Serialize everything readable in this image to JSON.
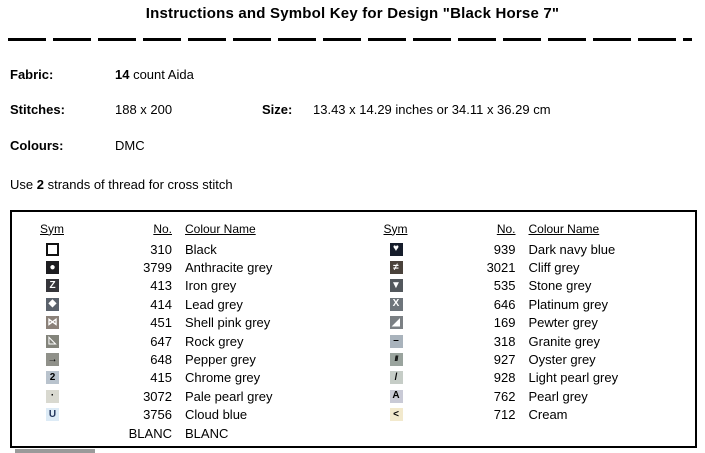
{
  "title": "Instructions and Symbol Key for Design \"Black Horse 7\"",
  "info": {
    "fabric_label": "Fabric:",
    "fabric_value_bold": "14",
    "fabric_value_rest": " count Aida",
    "stitches_label": "Stitches:",
    "stitches_value": "188 x 200",
    "size_label": "Size:",
    "size_value": "13.43 x 14.29 inches or 34.11 x 36.29 cm",
    "colours_label": "Colours:",
    "colours_value": "DMC",
    "strands_prefix": "Use ",
    "strands_bold": "2",
    "strands_suffix": " strands of thread for cross stitch"
  },
  "key_table": {
    "headers": {
      "sym": "Sym",
      "no": "No.",
      "name": "Colour Name"
    },
    "left_rows": [
      {
        "symbol": "open-square-icon",
        "glyph": "",
        "bg": "#ffffff",
        "fg": "#000000",
        "border": "#111111",
        "no": "310",
        "name": "Black"
      },
      {
        "symbol": "filled-circle-icon",
        "glyph": "●",
        "bg": "#1d1d20",
        "fg": "#ffffff",
        "no": "3799",
        "name": "Anthracite grey"
      },
      {
        "symbol": "letter-z-icon",
        "glyph": "Z",
        "bg": "#35353a",
        "fg": "#ffffff",
        "no": "413",
        "name": "Iron grey"
      },
      {
        "symbol": "diamond-icon",
        "glyph": "◆",
        "bg": "#5a616b",
        "fg": "#ffffff",
        "no": "414",
        "name": "Lead grey"
      },
      {
        "symbol": "bowtie-icon",
        "glyph": "⋈",
        "bg": "#8b8179",
        "fg": "#ffffff",
        "no": "451",
        "name": "Shell pink grey"
      },
      {
        "symbol": "lower-left-triangle-icon",
        "glyph": "◺",
        "bg": "#83847b",
        "fg": "#ffffff",
        "no": "647",
        "name": "Rock grey"
      },
      {
        "symbol": "right-arrow-icon",
        "glyph": "→",
        "bg": "#90918a",
        "fg": "#000000",
        "no": "648",
        "name": "Pepper grey"
      },
      {
        "symbol": "digit-2-icon",
        "glyph": "2",
        "bg": "#b9c3cd",
        "fg": "#000000",
        "no": "415",
        "name": "Chrome grey"
      },
      {
        "symbol": "dot-icon",
        "glyph": "·",
        "bg": "#d9d9d0",
        "fg": "#000000",
        "no": "3072",
        "name": "Pale pearl grey"
      },
      {
        "symbol": "letter-u-icon",
        "glyph": "U",
        "bg": "#ddebf6",
        "fg": "#23355c",
        "no": "3756",
        "name": "Cloud blue"
      },
      {
        "symbol": "blank-icon",
        "glyph": "",
        "bg": "#ffffff",
        "fg": "#000000",
        "no": "BLANC",
        "name": "BLANC"
      }
    ],
    "right_rows": [
      {
        "symbol": "heart-icon",
        "glyph": "♥",
        "bg": "#161d2b",
        "fg": "#ffffff",
        "no": "939",
        "name": "Dark navy blue"
      },
      {
        "symbol": "not-equal-icon",
        "glyph": "≠",
        "bg": "#4a423b",
        "fg": "#ffffff",
        "no": "3021",
        "name": "Cliff grey"
      },
      {
        "symbol": "down-triangle-icon",
        "glyph": "▼",
        "bg": "#53585d",
        "fg": "#ffffff",
        "no": "535",
        "name": "Stone grey"
      },
      {
        "symbol": "letter-x-icon",
        "glyph": "X",
        "bg": "#6e757b",
        "fg": "#ffffff",
        "no": "646",
        "name": "Platinum grey"
      },
      {
        "symbol": "lower-right-triangle-icon",
        "glyph": "◢",
        "bg": "#7b8084",
        "fg": "#ffffff",
        "no": "169",
        "name": "Pewter grey"
      },
      {
        "symbol": "dash-icon",
        "glyph": "–",
        "bg": "#a9b3bc",
        "fg": "#000000",
        "no": "318",
        "name": "Granite grey"
      },
      {
        "symbol": "triple-slash-icon",
        "glyph": "///",
        "bg": "#9aa49e",
        "fg": "#000000",
        "no": "927",
        "name": "Oyster grey"
      },
      {
        "symbol": "slash-icon",
        "glyph": "/",
        "bg": "#c6cdc7",
        "fg": "#000000",
        "no": "928",
        "name": "Light pearl grey"
      },
      {
        "symbol": "letter-a-icon",
        "glyph": "A",
        "bg": "#c9cad6",
        "fg": "#000000",
        "no": "762",
        "name": "Pearl grey"
      },
      {
        "symbol": "less-than-icon",
        "glyph": "<",
        "bg": "#f2e9cd",
        "fg": "#000000",
        "no": "712",
        "name": "Cream"
      }
    ]
  },
  "colors": {
    "text": "#000000",
    "border": "#000000",
    "background": "#ffffff"
  }
}
